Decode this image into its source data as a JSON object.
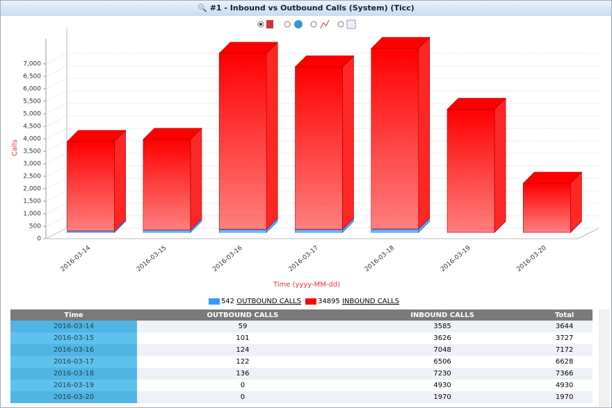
{
  "header": {
    "title": "#1 - Inbound vs Outbound Calls (System) (Ticc)"
  },
  "chart_data": {
    "type": "stacked_bar_3d",
    "ylabel": "Calls",
    "xlabel": "Time (yyyy-MM-dd)",
    "categories": [
      "2016-03-14",
      "2016-03-15",
      "2016-03-16",
      "2016-03-17",
      "2016-03-18",
      "2016-03-19",
      "2016-03-20"
    ],
    "series": [
      {
        "name": "OUTBOUND CALLS",
        "color": "#3399ff",
        "total": 542,
        "values": [
          59,
          101,
          124,
          122,
          136,
          0,
          0
        ]
      },
      {
        "name": "INBOUND CALLS",
        "color": "#ff0000",
        "total": 34895,
        "values": [
          3585,
          3626,
          7048,
          6506,
          7230,
          4930,
          1970
        ]
      }
    ],
    "ylim": [
      0,
      8000
    ],
    "yticks": [
      0,
      500,
      {
        "value": 1000,
        "label": "1,000"
      },
      {
        "value": 1500,
        "label": "1,500"
      },
      {
        "value": 2000,
        "label": "2,000"
      },
      {
        "value": 2500,
        "label": "2,500"
      },
      {
        "value": 3000,
        "label": "3,000"
      },
      {
        "value": 3500,
        "label": "3,500"
      },
      {
        "value": 4000,
        "label": "4,000"
      },
      {
        "value": 4500,
        "label": "4,500"
      },
      {
        "value": 5000,
        "label": "5,000"
      },
      {
        "value": 5500,
        "label": "5,500"
      },
      {
        "value": 6000,
        "label": "6,000"
      },
      {
        "value": 6500,
        "label": "6,500"
      },
      {
        "value": 7000,
        "label": "7,000"
      }
    ],
    "grid": true
  },
  "table": {
    "columns": [
      "Time",
      "OUTBOUND CALLS",
      "INBOUND CALLS",
      "Total"
    ],
    "totals": [
      3644,
      3727,
      7172,
      6628,
      7366,
      4930,
      1970
    ]
  }
}
